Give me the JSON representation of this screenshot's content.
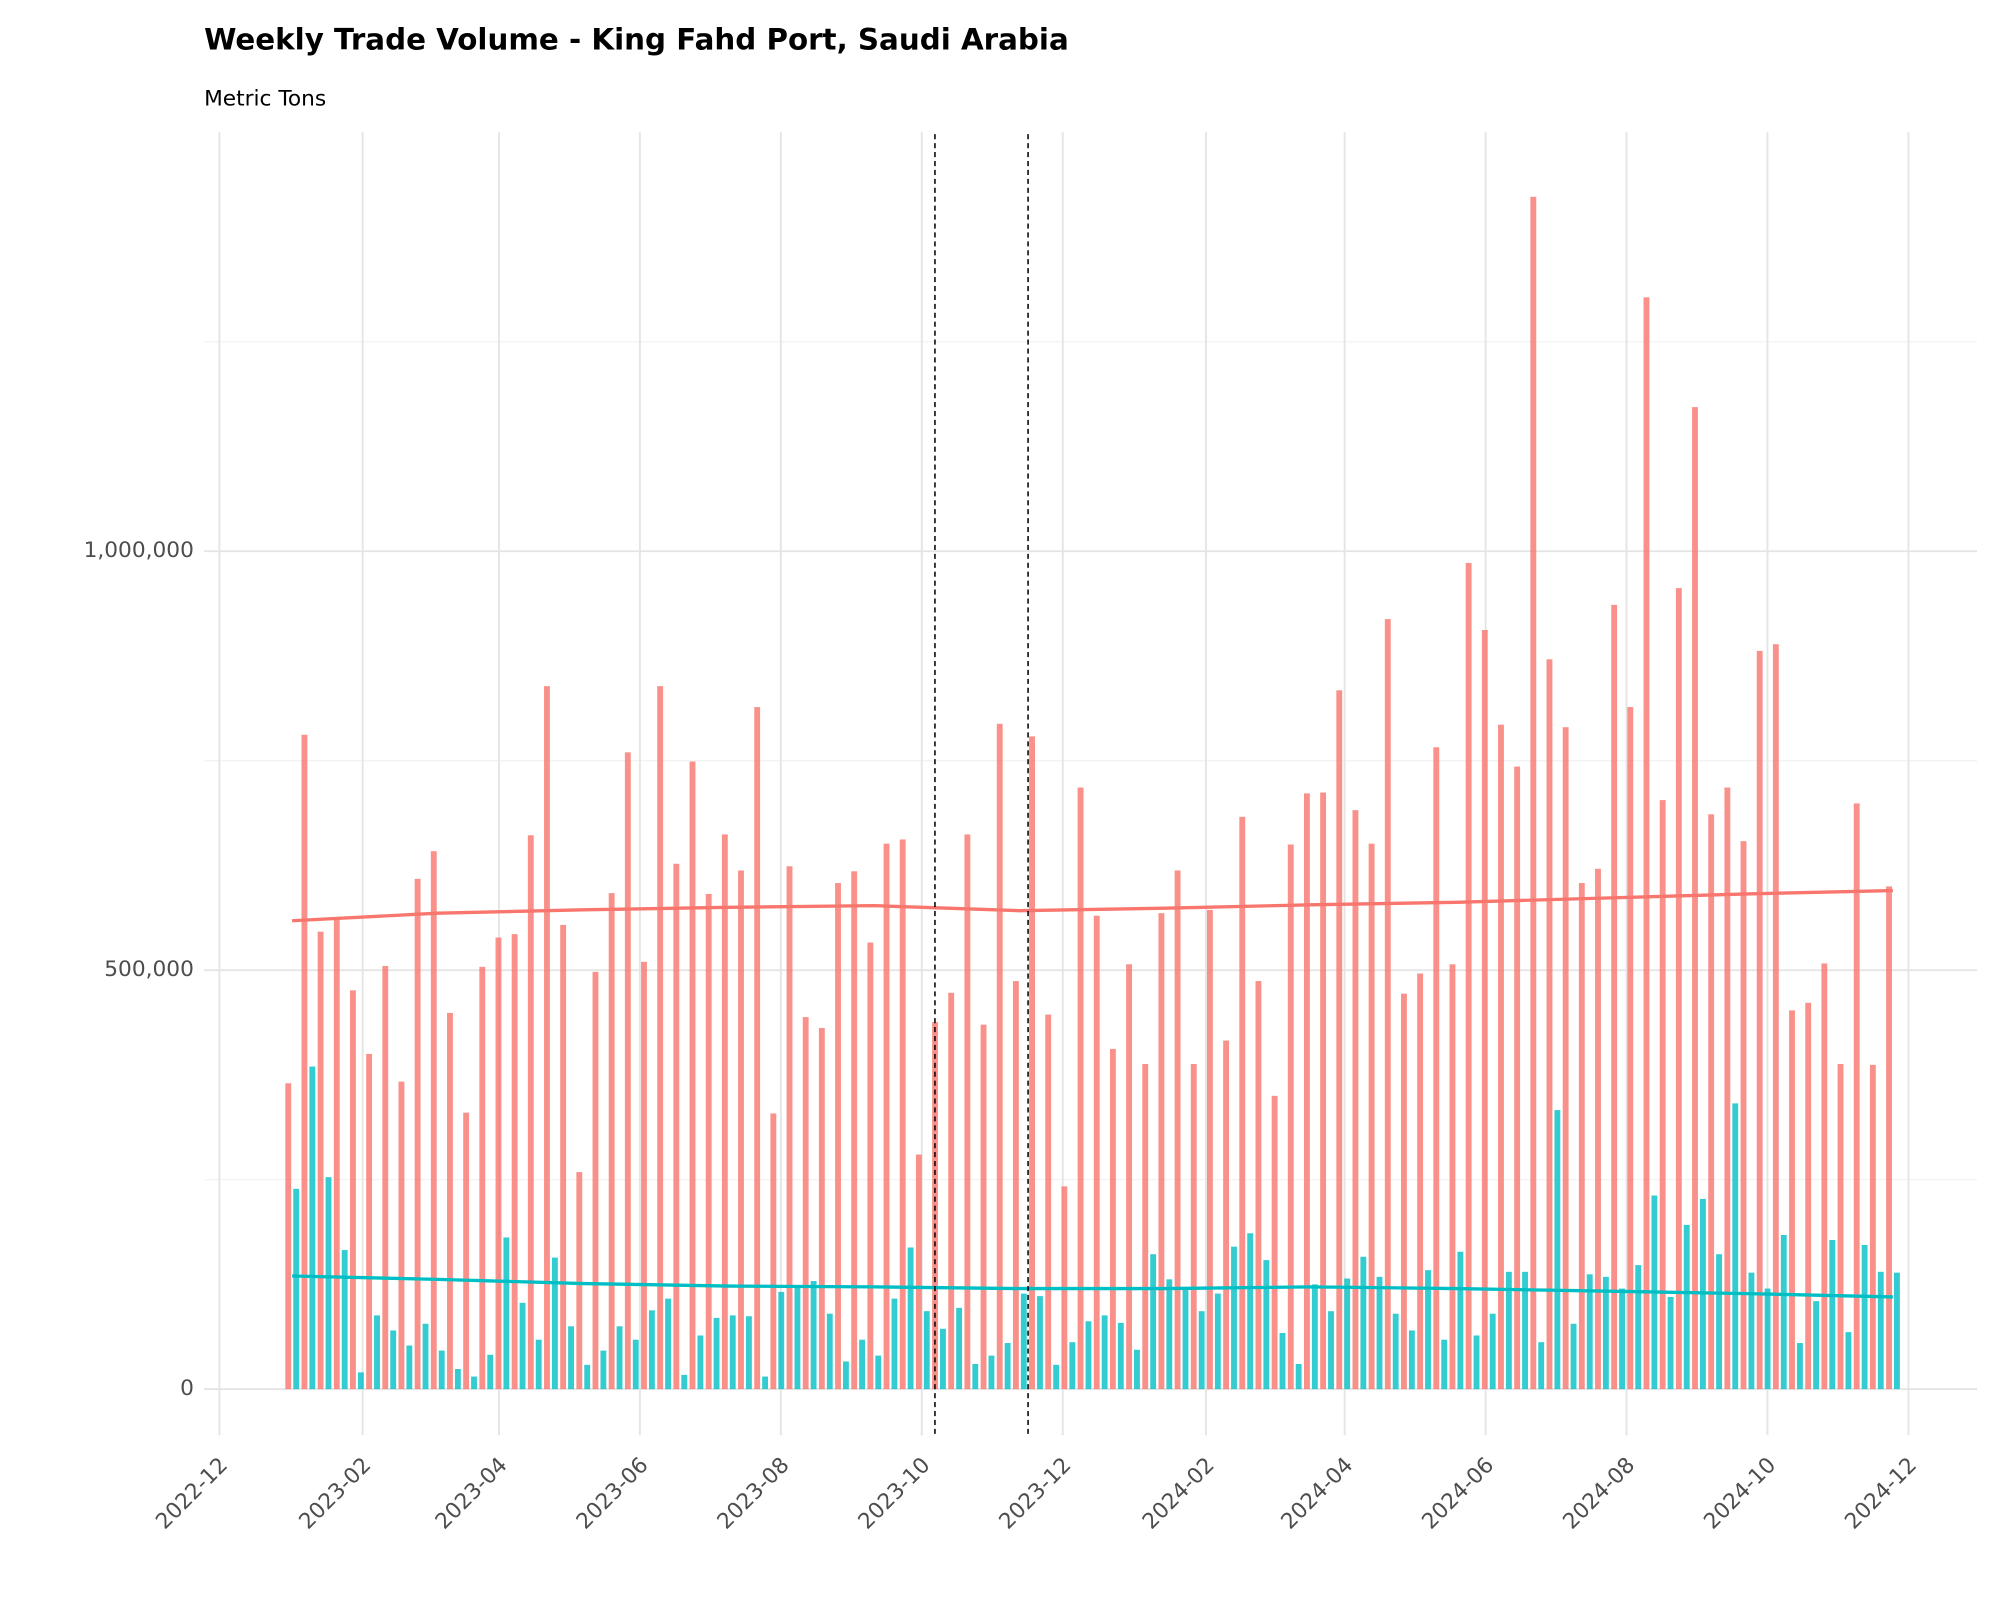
{
  "chart_data": {
    "type": "bar",
    "title": "Weekly Trade Volume - King Fahd Port, Saudi Arabia",
    "subtitle": "Metric Tons",
    "categories": [
      null,
      null,
      null,
      null,
      null,
      null,
      null,
      null,
      null,
      null,
      null,
      null,
      null,
      null,
      null,
      null,
      null,
      null,
      null,
      null,
      null,
      null,
      null,
      null,
      null,
      null,
      null,
      null,
      null,
      null,
      null,
      null,
      null,
      null,
      null,
      null,
      null,
      null,
      null,
      null,
      null,
      null,
      null,
      null,
      null,
      null,
      null,
      null,
      null,
      null,
      null,
      null,
      null,
      null,
      null,
      null,
      null,
      null,
      null,
      null,
      null,
      null,
      null,
      null,
      null,
      null,
      null,
      null,
      null,
      null,
      null,
      null,
      null,
      null,
      null,
      null,
      null,
      null,
      null,
      null,
      null,
      null,
      null,
      null,
      null,
      null,
      null,
      null,
      null,
      null,
      null,
      null,
      null,
      null,
      null,
      null,
      null,
      null,
      null,
      null
    ],
    "series": [
      {
        "color": "#F8766D",
        "values": [
          365000,
          781000,
          546000,
          562000,
          476000,
          400000,
          505000,
          367000,
          609000,
          642000,
          449000,
          330000,
          504000,
          539000,
          543000,
          661000,
          839000,
          554000,
          259000,
          498000,
          592000,
          760000,
          510000,
          839000,
          627000,
          749000,
          591000,
          662000,
          619000,
          814000,
          329000,
          624000,
          444000,
          431000,
          604000,
          618000,
          533000,
          651000,
          656000,
          280000,
          438000,
          473000,
          662000,
          435000,
          794000,
          487000,
          779000,
          447000,
          242000,
          718000,
          565000,
          406000,
          507000,
          388000,
          568000,
          619000,
          388000,
          572000,
          416000,
          683000,
          487000,
          350000,
          650000,
          711000,
          712000,
          834000,
          691000,
          651000,
          919000,
          472000,
          496000,
          766000,
          507000,
          986000,
          906000,
          793000,
          743000,
          1423000,
          871000,
          790000,
          604000,
          621000,
          936000,
          814000,
          1303000,
          703000,
          956000,
          1172000,
          686000,
          718000,
          654000,
          881000,
          889000,
          452000,
          461000,
          508000,
          388000,
          699000,
          387000,
          600000
        ]
      },
      {
        "color": "#00BFC4",
        "values": [
          239000,
          385000,
          253000,
          166000,
          20000,
          88000,
          70000,
          52000,
          78000,
          46000,
          24000,
          15000,
          41000,
          181000,
          103000,
          59000,
          157000,
          75000,
          29000,
          46000,
          75000,
          59000,
          94000,
          108000,
          17000,
          64000,
          85000,
          88000,
          87000,
          15000,
          116000,
          122000,
          129000,
          90000,
          33000,
          59000,
          40000,
          108000,
          169000,
          93000,
          72000,
          97000,
          30000,
          40000,
          55000,
          114000,
          111000,
          29000,
          56000,
          81000,
          88000,
          79000,
          47000,
          161000,
          131000,
          120000,
          93000,
          114000,
          170000,
          186000,
          154000,
          67000,
          30000,
          125000,
          93000,
          132000,
          158000,
          134000,
          90000,
          70000,
          142000,
          59000,
          164000,
          64000,
          90000,
          140000,
          140000,
          56000,
          333000,
          78000,
          137000,
          134000,
          120000,
          148000,
          231000,
          110000,
          196000,
          227000,
          161000,
          341000,
          139000,
          120000,
          184000,
          55000,
          105000,
          178000,
          68000,
          172000,
          140000,
          139000
        ]
      }
    ],
    "trend_lines": [
      {
        "color": "#F8766D",
        "values": [
          559000,
          568000,
          572000,
          575000,
          577000,
          571000,
          574000,
          578000,
          581000,
          586000,
          591000,
          595000
        ]
      },
      {
        "color": "#00BFC4",
        "values": [
          135000,
          131000,
          126000,
          123000,
          122000,
          120000,
          120000,
          122000,
          120000,
          117000,
          114000,
          110000
        ]
      }
    ],
    "xticks": [
      "2022-12",
      "2023-02",
      "2023-04",
      "2023-06",
      "2023-08",
      "2023-10",
      "2023-12",
      "2024-02",
      "2024-04",
      "2024-06",
      "2024-08",
      "2024-10",
      "2024-12"
    ],
    "ylim": [
      -55000,
      1500000
    ],
    "yticks": [
      0,
      {
        "value": 500000,
        "label": "500,000"
      },
      {
        "value": 1000000,
        "label": "1,000,000"
      }
    ],
    "y_minor_ticks": [
      250000,
      750000,
      1250000
    ],
    "grid": true,
    "bar_opacity": 0.8
  }
}
